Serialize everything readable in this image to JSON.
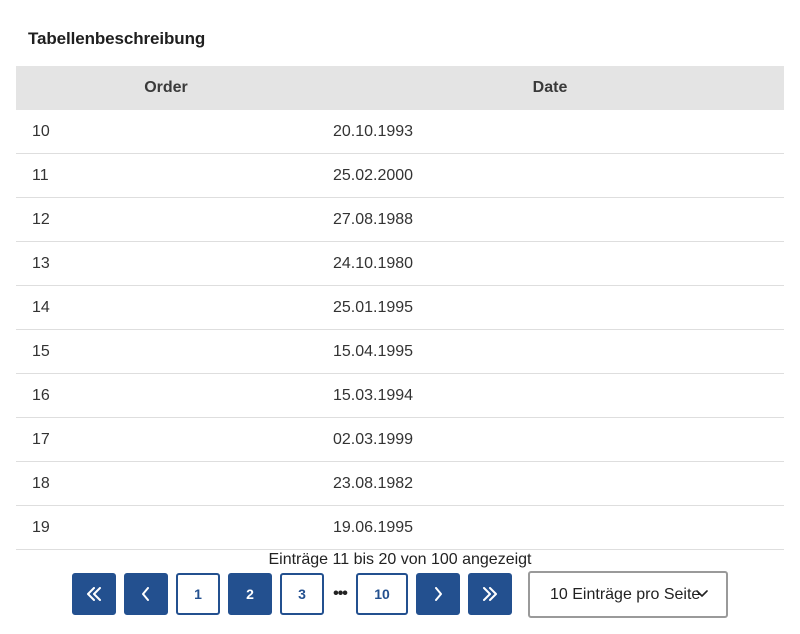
{
  "caption": "Tabellenbeschreibung",
  "table": {
    "headers": {
      "order": "Order",
      "date": "Date"
    },
    "rows": [
      {
        "order": "10",
        "date": "20.10.1993"
      },
      {
        "order": "11",
        "date": "25.02.2000"
      },
      {
        "order": "12",
        "date": "27.08.1988"
      },
      {
        "order": "13",
        "date": "24.10.1980"
      },
      {
        "order": "14",
        "date": "25.01.1995"
      },
      {
        "order": "15",
        "date": "15.04.1995"
      },
      {
        "order": "16",
        "date": "15.03.1994"
      },
      {
        "order": "17",
        "date": "02.03.1999"
      },
      {
        "order": "18",
        "date": "23.08.1982"
      },
      {
        "order": "19",
        "date": "19.06.1995"
      }
    ]
  },
  "summary": "Einträge 11 bis 20 von 100 angezeigt",
  "pagination": {
    "first_icon": "double-chevron-left-icon",
    "prev_icon": "chevron-left-icon",
    "pages": [
      "1",
      "2",
      "3"
    ],
    "current_page": "2",
    "ellipsis": "•••",
    "last_page": "10",
    "next_icon": "chevron-right-icon",
    "last_icon": "double-chevron-right-icon"
  },
  "page_size": {
    "selected": "10 Einträge pro Seite",
    "icon": "chevron-down-icon"
  },
  "colors": {
    "accent": "#23508f",
    "header_bg": "#e4e4e4"
  }
}
